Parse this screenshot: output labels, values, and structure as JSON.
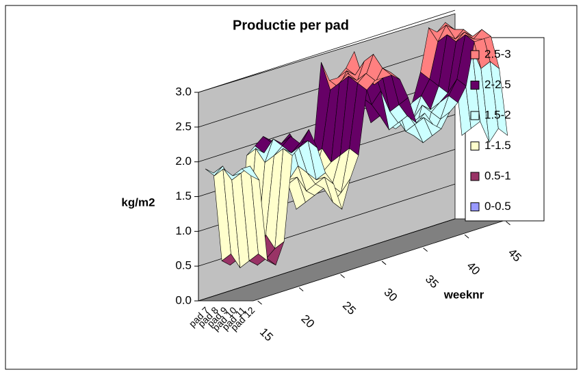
{
  "chart_data": {
    "type": "surface",
    "title": "Productie per pad",
    "ylabel": "kg/m2",
    "xlabel": "weeknr",
    "x": [
      15,
      16,
      17,
      18,
      19,
      20,
      21,
      22,
      23,
      24,
      25,
      26,
      27,
      28,
      29,
      30,
      31,
      32,
      33,
      34,
      35,
      36,
      37,
      38,
      39,
      40,
      41,
      42,
      43,
      44,
      45,
      46
    ],
    "xlim": [
      15,
      46
    ],
    "xticks": [
      15,
      20,
      25,
      30,
      35,
      40,
      45
    ],
    "series": [
      {
        "name": "pad 7",
        "values": [
          1.9,
          1.8,
          0.5,
          0.4,
          0.6,
          1.9,
          2.0,
          2.1,
          2.0,
          1.5,
          1.3,
          0.9,
          1.2,
          1.6,
          2.9,
          2.6,
          2.6,
          2.7,
          2.9,
          2.2,
          1.8,
          1.9,
          1.7,
          1.6,
          1.8,
          1.9,
          2.3,
          2.9,
          2.8,
          2.9,
          2.4,
          1.2
        ]
      },
      {
        "name": "pad 8",
        "values": [
          1.8,
          1.9,
          0.6,
          0.5,
          0.7,
          2.0,
          1.9,
          2.0,
          1.9,
          1.4,
          1.4,
          1.0,
          1.3,
          1.7,
          2.5,
          2.5,
          2.7,
          2.6,
          2.5,
          2.1,
          1.9,
          1.8,
          1.8,
          1.7,
          1.7,
          2.0,
          2.2,
          2.7,
          2.9,
          2.8,
          2.3,
          1.3
        ]
      },
      {
        "name": "pad 9",
        "values": [
          1.9,
          1.7,
          0.4,
          0.6,
          0.5,
          1.8,
          2.1,
          2.0,
          2.1,
          1.6,
          1.2,
          1.1,
          1.4,
          1.5,
          2.6,
          2.7,
          2.5,
          2.8,
          2.7,
          2.3,
          1.7,
          2.0,
          1.6,
          1.5,
          1.9,
          1.8,
          2.1,
          2.8,
          2.7,
          2.8,
          2.5,
          1.4
        ]
      },
      {
        "name": "pad 10",
        "values": [
          1.8,
          1.8,
          0.5,
          0.4,
          0.8,
          1.9,
          2.0,
          2.1,
          1.9,
          1.5,
          1.3,
          1.2,
          1.2,
          1.6,
          2.7,
          2.6,
          2.6,
          2.9,
          2.6,
          2.0,
          1.8,
          1.9,
          1.7,
          1.4,
          1.8,
          1.9,
          2.0,
          2.7,
          2.8,
          2.7,
          2.2,
          1.1
        ]
      },
      {
        "name": "pad 11",
        "values": [
          1.9,
          1.9,
          0.6,
          0.5,
          0.6,
          2.0,
          1.9,
          2.0,
          2.0,
          1.4,
          1.4,
          1.0,
          1.1,
          1.7,
          2.6,
          2.7,
          2.5,
          2.7,
          2.6,
          2.1,
          1.9,
          1.8,
          1.8,
          1.5,
          1.7,
          2.0,
          2.2,
          2.8,
          2.7,
          2.8,
          2.3,
          1.3
        ]
      },
      {
        "name": "pad 12",
        "values": [
          1.8,
          1.7,
          0.5,
          0.4,
          0.7,
          1.9,
          2.0,
          2.2,
          1.9,
          1.5,
          1.3,
          0.9,
          1.3,
          1.6,
          2.5,
          2.6,
          2.6,
          2.6,
          2.5,
          2.2,
          1.8,
          1.9,
          1.7,
          1.6,
          1.8,
          1.9,
          2.1,
          2.7,
          2.7,
          2.7,
          2.2,
          1.2
        ]
      }
    ],
    "ylim": [
      0,
      3
    ],
    "yticks": [
      {
        "value": 0,
        "label": "0.0"
      },
      {
        "value": 0.5,
        "label": "0.5"
      },
      {
        "value": 1,
        "label": "1.0"
      },
      {
        "value": 1.5,
        "label": "1.5"
      },
      {
        "value": 2,
        "label": "2.0"
      },
      {
        "value": 2.5,
        "label": "2.5"
      },
      {
        "value": 3,
        "label": "3.0"
      }
    ],
    "grid": true,
    "legend_position": "right",
    "legend": [
      {
        "name": "2.5-3",
        "color": "#ff8080"
      },
      {
        "name": "2-2.5",
        "color": "#660066"
      },
      {
        "name": "1.5-2",
        "color": "#ccffff"
      },
      {
        "name": "1-1.5",
        "color": "#ffffcc"
      },
      {
        "name": "0.5-1",
        "color": "#993366"
      },
      {
        "name": "0-0.5",
        "color": "#9999ff"
      }
    ]
  }
}
